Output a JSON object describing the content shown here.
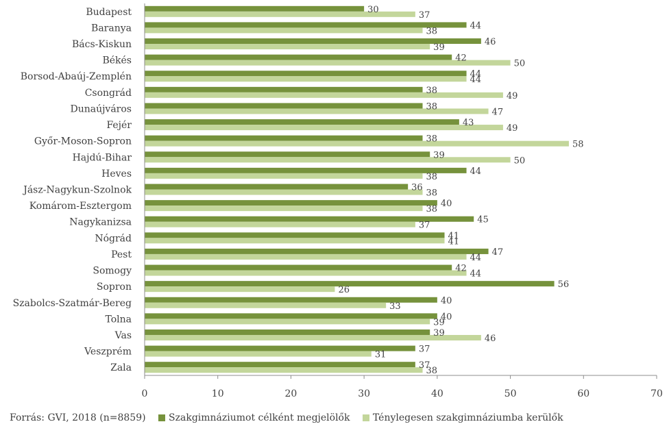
{
  "chart_data": {
    "type": "bar",
    "orientation": "horizontal",
    "categories": [
      "Budapest",
      "Baranya",
      "Bács-Kiskun",
      "Békés",
      "Borsod-Abaúj-Zemplén",
      "Csongrád",
      "Dunaújváros",
      "Fejér",
      "Győr-Moson-Sopron",
      "Hajdú-Bihar",
      "Heves",
      "Jász-Nagykun-Szolnok",
      "Komárom-Esztergom",
      "Nagykanizsa",
      "Nógrád",
      "Pest",
      "Somogy",
      "Sopron",
      "Szabolcs-Szatmár-Bereg",
      "Tolna",
      "Vas",
      "Veszprém",
      "Zala"
    ],
    "series": [
      {
        "name": "Szakgimnáziumot célként megjelölők",
        "color": "#76923c",
        "values": [
          30,
          44,
          46,
          42,
          44,
          38,
          38,
          43,
          38,
          39,
          44,
          36,
          40,
          45,
          41,
          47,
          42,
          56,
          40,
          40,
          39,
          37,
          37
        ]
      },
      {
        "name": "Ténylegesen szakgimnáziumba kerülők",
        "color": "#c3d69b",
        "values": [
          37,
          38,
          39,
          50,
          44,
          49,
          47,
          49,
          58,
          50,
          38,
          38,
          38,
          37,
          41,
          44,
          44,
          26,
          33,
          39,
          46,
          31,
          38
        ]
      }
    ],
    "xlim": [
      0,
      70
    ],
    "xticks": [
      0,
      10,
      20,
      30,
      40,
      50,
      60,
      70
    ],
    "xlabel": "",
    "ylabel": "",
    "grid": false,
    "legend_position": "bottom"
  },
  "source": "Forrás: GVI, 2018 (n=8859)"
}
